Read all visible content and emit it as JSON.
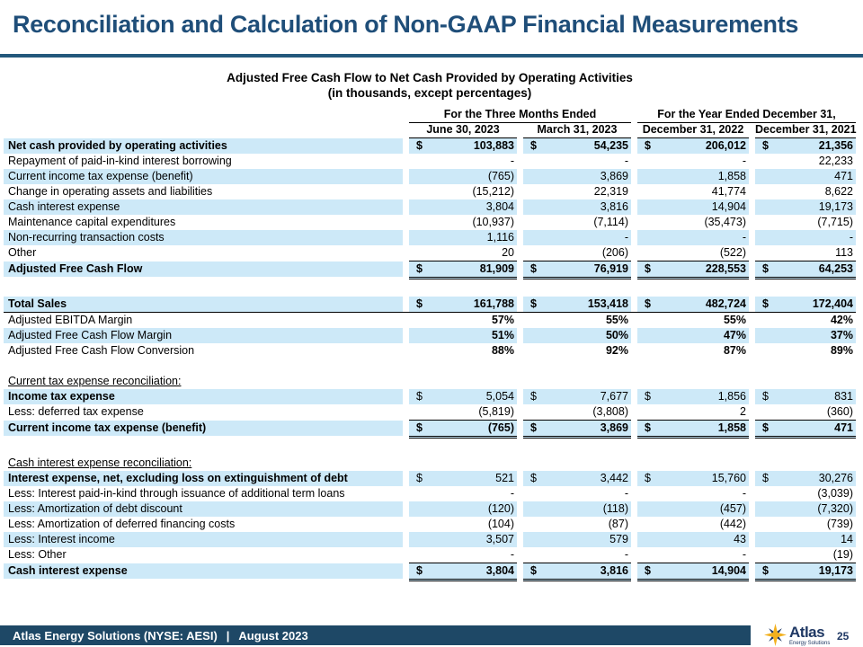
{
  "slide": {
    "title": "Reconciliation and Calculation of Non-GAAP Financial Measurements",
    "page_number": "25"
  },
  "colors": {
    "title_navy": "#1F4E79",
    "rule_blue": "#24587C",
    "stripe_blue": "#CDE9F8",
    "footer_navy": "#1E4866",
    "logo_gold": "#F2B01E",
    "logo_navy": "#1F3864"
  },
  "table": {
    "subtitle_line1": "Adjusted Free Cash Flow to Net Cash Provided by Operating Activities",
    "subtitle_line2": "(in thousands, except percentages)",
    "groups": [
      {
        "label": "For the Three Months Ended"
      },
      {
        "label": "For the Year Ended December 31,"
      }
    ],
    "columns": [
      "June 30, 2023",
      "March 31, 2023",
      "December 31, 2022",
      "December 31, 2021"
    ],
    "sections": [
      {
        "rows": [
          {
            "label": "Net cash provided by operating activities",
            "shaded": true,
            "label_bold": true,
            "values_bold": true,
            "dollar": true,
            "values": [
              "103,883",
              "54,235",
              "206,012",
              "21,356"
            ]
          },
          {
            "label": "Repayment of paid-in-kind interest borrowing",
            "shaded": false,
            "values": [
              "-",
              "-",
              "-",
              "22,233"
            ]
          },
          {
            "label": "Current income tax expense (benefit)",
            "shaded": true,
            "values": [
              "(765)",
              "3,869",
              "1,858",
              "471"
            ]
          },
          {
            "label": "Change in operating assets and liabilities",
            "shaded": false,
            "values": [
              "(15,212)",
              "22,319",
              "41,774",
              "8,622"
            ]
          },
          {
            "label": "Cash interest expense",
            "shaded": true,
            "values": [
              "3,804",
              "3,816",
              "14,904",
              "19,173"
            ]
          },
          {
            "label": "Maintenance capital expenditures",
            "shaded": false,
            "values": [
              "(10,937)",
              "(7,114)",
              "(35,473)",
              "(7,715)"
            ]
          },
          {
            "label": "Non-recurring transaction costs",
            "shaded": true,
            "values": [
              "1,116",
              "-",
              "-",
              "-"
            ]
          },
          {
            "label": "Other",
            "shaded": false,
            "values": [
              "20",
              "(206)",
              "(522)",
              "113"
            ],
            "underline": "single"
          },
          {
            "label": "Adjusted Free Cash Flow",
            "shaded": true,
            "label_bold": true,
            "values_bold": true,
            "dollar": true,
            "values": [
              "81,909",
              "76,919",
              "228,553",
              "64,253"
            ],
            "underline": "double"
          }
        ]
      },
      {
        "rows": [
          {
            "label": "Total Sales",
            "shaded": true,
            "label_bold": true,
            "values_bold": true,
            "dollar": true,
            "values": [
              "161,788",
              "153,418",
              "482,724",
              "172,404"
            ],
            "underline_full": true
          },
          {
            "label": "Adjusted EBITDA Margin",
            "shaded": false,
            "values_bold": true,
            "values": [
              "57%",
              "55%",
              "55%",
              "42%"
            ]
          },
          {
            "label": "Adjusted Free Cash Flow Margin",
            "shaded": true,
            "values_bold": true,
            "values": [
              "51%",
              "50%",
              "47%",
              "37%"
            ]
          },
          {
            "label": "Adjusted Free Cash Flow Conversion",
            "shaded": false,
            "values_bold": true,
            "values": [
              "88%",
              "92%",
              "87%",
              "89%"
            ]
          }
        ]
      },
      {
        "header": "Current tax expense reconciliation:",
        "rows": [
          {
            "label": "Income tax expense",
            "shaded": true,
            "label_bold": true,
            "dollar": true,
            "values": [
              "5,054",
              "7,677",
              "1,856",
              "831"
            ]
          },
          {
            "label": "Less: deferred tax expense",
            "shaded": false,
            "values": [
              "(5,819)",
              "(3,808)",
              "2",
              "(360)"
            ],
            "underline": "single"
          },
          {
            "label": "Current income tax expense (benefit)",
            "shaded": true,
            "label_bold": true,
            "values_bold": true,
            "dollar": true,
            "values": [
              "(765)",
              "3,869",
              "1,858",
              "471"
            ],
            "underline": "double"
          }
        ]
      },
      {
        "header": "Cash interest expense reconciliation:",
        "rows": [
          {
            "label": "Interest expense, net, excluding loss on extinguishment of debt",
            "shaded": true,
            "label_bold": true,
            "dollar": true,
            "values": [
              "521",
              "3,442",
              "15,760",
              "30,276"
            ]
          },
          {
            "label": "Less: Interest paid-in-kind through issuance of additional term loans",
            "shaded": false,
            "values": [
              "-",
              "-",
              "-",
              "(3,039)"
            ]
          },
          {
            "label": "Less: Amortization of debt discount",
            "shaded": true,
            "values": [
              "(120)",
              "(118)",
              "(457)",
              "(7,320)"
            ]
          },
          {
            "label": "Less: Amortization of deferred financing costs",
            "shaded": false,
            "values": [
              "(104)",
              "(87)",
              "(442)",
              "(739)"
            ]
          },
          {
            "label": "Less: Interest income",
            "shaded": true,
            "values": [
              "3,507",
              "579",
              "43",
              "14"
            ]
          },
          {
            "label": "Less: Other",
            "shaded": false,
            "values": [
              "-",
              "-",
              "-",
              "(19)"
            ],
            "underline": "single"
          },
          {
            "label": "Cash interest expense",
            "shaded": true,
            "label_bold": true,
            "values_bold": true,
            "dollar": true,
            "values": [
              "3,804",
              "3,816",
              "14,904",
              "19,173"
            ],
            "underline": "double"
          }
        ]
      }
    ]
  },
  "footer": {
    "company": "Atlas Energy Solutions (NYSE: AESI)",
    "separator": "|",
    "date": "August 2023",
    "logo_text": "Atlas",
    "logo_subtext": "Energy Solutions"
  }
}
